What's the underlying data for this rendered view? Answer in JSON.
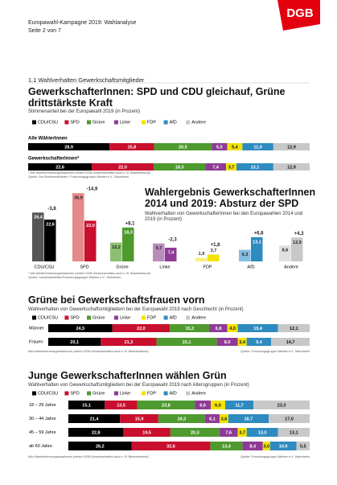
{
  "header": {
    "title": "Europawahl-Kampagne 2019: Wahlanalyse",
    "page": "Seite 2 von 7",
    "logo": "DGB"
  },
  "section": "1.1  Wahlverhalten Gewerkschaftsmitglieder",
  "chart_data": [
    {
      "type": "stacked_bar",
      "title": "GewerkschafterInnen: SPD und CDU gleichauf, Grüne drittstärkste Kraft",
      "subtitle": "Stimmenanteil bei der Europawahl 2019 (in Prozent)",
      "categories": [
        "Alle WählerInnen",
        "GewerkschafterInnen*"
      ],
      "series": [
        {
          "name": "CDU/CSU",
          "color": "#000000",
          "values": [
            28.9,
            22.6
          ],
          "value_labels": [
            "28,9",
            "22,6"
          ]
        },
        {
          "name": "SPD",
          "color": "#c8102e",
          "values": [
            15.8,
            22.0
          ],
          "value_labels": [
            "15,8",
            "22,0"
          ]
        },
        {
          "name": "Grüne",
          "color": "#4e9a2f",
          "values": [
            20.5,
            18.3
          ],
          "value_labels": [
            "20,5",
            "18,3"
          ]
        },
        {
          "name": "Linke",
          "color": "#8e3a96",
          "values": [
            5.5,
            7.4
          ],
          "value_labels": [
            "5,5",
            "7,4"
          ]
        },
        {
          "name": "FDP",
          "color": "#f2e300",
          "values": [
            5.4,
            3.7
          ],
          "value_labels": [
            "5,4",
            "3,7"
          ]
        },
        {
          "name": "AfD",
          "color": "#2e8bc0",
          "values": [
            11.0,
            13.1
          ],
          "value_labels": [
            "11,0",
            "13,1"
          ]
        },
        {
          "name": "Andere",
          "color": "#c8c8c8",
          "values": [
            12.9,
            12.9
          ],
          "value_labels": [
            "12,9",
            "12,9"
          ]
        }
      ],
      "notes": [
        "* Alle Arbeitnehmerorganisationen (neben DGB-Gewerkschaften auch z. B. Beamtenbund)",
        "Quelle: Der Bundeswahlleiter / Forschungsgruppe Wahlen e.V., Mannheim"
      ]
    },
    {
      "type": "grouped_bar",
      "title": "Wahlergebnis GewerkschafterInnen 2014 und 2019: Absturz der SPD",
      "subtitle": "Wahlverhalten von GewerkschafterInnen bei den Europawahlen 2014 und 2019 (in Prozent)",
      "categories": [
        "CDU/CSU",
        "SPD",
        "Grüne",
        "Linke",
        "FDP",
        "AfD",
        "Andere"
      ],
      "series": [
        {
          "colors": [
            "#555555",
            "#e58a8a",
            "#8cc070",
            "#b88dbd",
            "#f7ee80",
            "#85bde0",
            "#e0e0e0"
          ],
          "values": [
            26.4,
            36.9,
            10.2,
            9.7,
            1.9,
            6.3,
            8.6
          ],
          "value_labels": [
            "26,4",
            "36,9",
            "10,2",
            "9,7",
            "1,9",
            "6,3",
            "8,6"
          ]
        },
        {
          "colors": [
            "#000000",
            "#c8102e",
            "#4e9a2f",
            "#8e3a96",
            "#f2e300",
            "#2e8bc0",
            "#c8c8c8"
          ],
          "values": [
            22.6,
            22.0,
            18.3,
            7.4,
            3.7,
            13.1,
            12.9
          ],
          "value_labels": [
            "22,6",
            "22,0",
            "18,3",
            "7,4",
            "3,7",
            "13,1",
            "12,9"
          ]
        }
      ],
      "changes": {
        "values": [
          -3.8,
          -14.9,
          8.1,
          -2.3,
          1.8,
          6.8,
          4.3
        ],
        "value_labels": [
          "-3,8",
          "-14,9",
          "+8,1",
          "-2,3",
          "+1,8",
          "+6,8",
          "+4,3"
        ]
      },
      "notes": [
        "* Alle Arbeitnehmerorganisationen (neben DGB-Gewerkschaften auch z. B. Beamtenbund)",
        "Quelle: Landeswahlleiter/Forschungsgruppe Wahlen e.V., Mannheim"
      ]
    },
    {
      "type": "stacked_bar",
      "title": "Grüne bei Gewerkschaftsfrauen vorn",
      "subtitle": "Wahlverhalten von Gewerkschaftsmitgliedern bei der Europawahl 2019 nach Geschlecht (in Prozent)",
      "categories": [
        "Männer",
        "Frauen"
      ],
      "series": [
        {
          "name": "CDU/CSU",
          "color": "#000000",
          "values": [
            24.5,
            20.1
          ],
          "value_labels": [
            "24,5",
            "20,1"
          ]
        },
        {
          "name": "SPD",
          "color": "#c8102e",
          "values": [
            22.0,
            21.3
          ],
          "value_labels": [
            "22,0",
            "21,3"
          ]
        },
        {
          "name": "Grüne",
          "color": "#4e9a2f",
          "values": [
            15.2,
            23.1
          ],
          "value_labels": [
            "15,2",
            "23,1"
          ]
        },
        {
          "name": "Linke",
          "color": "#8e3a96",
          "values": [
            6.8,
            8.0
          ],
          "value_labels": [
            "6,8",
            "8,0"
          ]
        },
        {
          "name": "FDP",
          "color": "#f2e300",
          "values": [
            4.0,
            3.4
          ],
          "value_labels": [
            "4,0",
            "3,4"
          ]
        },
        {
          "name": "AfD",
          "color": "#2e8bc0",
          "values": [
            15.4,
            9.4
          ],
          "value_labels": [
            "15,4",
            "9,4"
          ]
        },
        {
          "name": "Andere",
          "color": "#c8c8c8",
          "values": [
            12.1,
            14.7
          ],
          "value_labels": [
            "12,1",
            "14,7"
          ]
        }
      ],
      "notes": [
        "Alle Arbeitnehmerorganisationen (neben DGB-Gewerkschaften auch z. B. Beamtenbund)",
        "Quelle: Forschungsgruppe Wahlen e.V., Mannheim"
      ]
    },
    {
      "type": "stacked_bar",
      "title": "Junge GewerkschafterInnen wählen Grün",
      "subtitle": "Wahlverhalten von Gewerkschaftsmitgliedern bei der Europawahl 2019 nach Altersgruppen (in Prozent)",
      "categories": [
        "18 – 29 Jahre",
        "30 – 44 Jahre",
        "45 – 59 Jahre",
        "ab 60 Jahre"
      ],
      "series": [
        {
          "name": "CDU/CSU",
          "color": "#000000",
          "values": [
            15.1,
            21.4,
            22.8,
            26.2
          ],
          "value_labels": [
            "15,1",
            "21,4",
            "22,8",
            "26,2"
          ]
        },
        {
          "name": "SPD",
          "color": "#c8102e",
          "values": [
            13.5,
            15.9,
            19.5,
            32.6
          ],
          "value_labels": [
            "13,5",
            "15,9",
            "19,5",
            "32,6"
          ]
        },
        {
          "name": "Grüne",
          "color": "#4e9a2f",
          "values": [
            23.8,
            19.3,
            20.3,
            13.4
          ],
          "value_labels": [
            "23,8",
            "19,3",
            "20,3",
            "13,4"
          ]
        },
        {
          "name": "Linke",
          "color": "#8e3a96",
          "values": [
            6.6,
            6.1,
            7.6,
            8.4
          ],
          "value_labels": [
            "6,6",
            "6,1",
            "7,6",
            "8,4"
          ]
        },
        {
          "name": "FDP",
          "color": "#f2e300",
          "values": [
            6.0,
            3.6,
            3.7,
            3.0
          ],
          "value_labels": [
            "6,0",
            "3,6",
            "3,7",
            "3,0"
          ]
        },
        {
          "name": "AfD",
          "color": "#2e8bc0",
          "values": [
            11.7,
            16.7,
            13.0,
            10.9
          ],
          "value_labels": [
            "11,7",
            "16,7",
            "13,0",
            "10,9"
          ]
        },
        {
          "name": "Andere",
          "color": "#c8c8c8",
          "values": [
            23.3,
            17.0,
            13.1,
            5.5
          ],
          "value_labels": [
            "23,3",
            "17,0",
            "13,1",
            "5,5"
          ]
        }
      ],
      "notes": [
        "Alle Arbeitnehmerorganisationen (neben DGB-Gewerkschaften auch z. B. Beamtenbund)",
        "Quelle: Forschungsgruppe Wahlen e.V., Mannheim"
      ]
    }
  ]
}
